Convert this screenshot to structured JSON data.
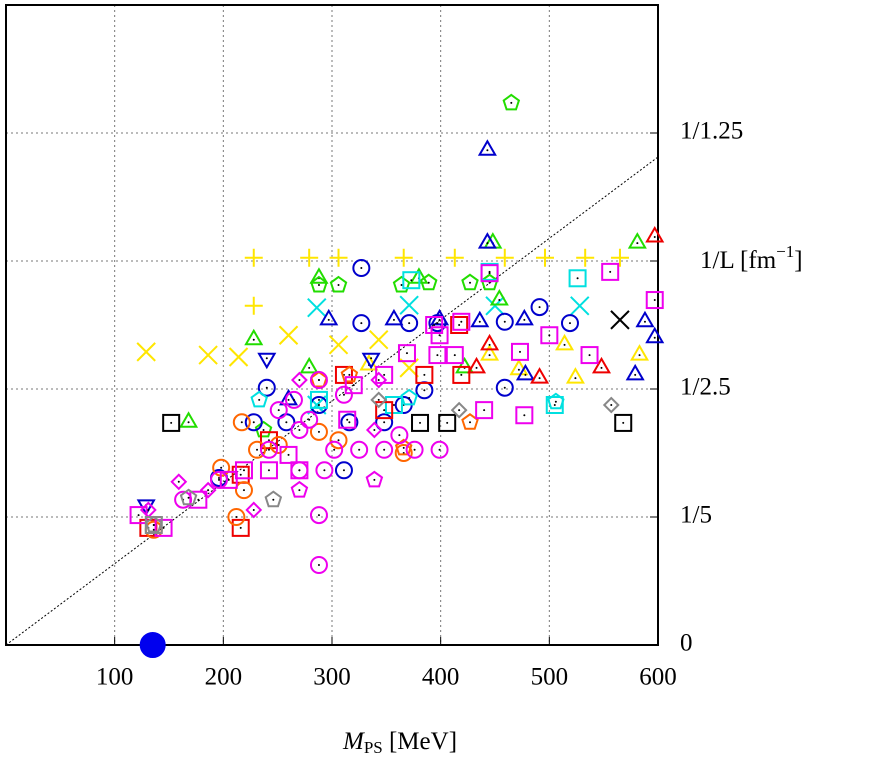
{
  "chart_data": {
    "type": "scatter",
    "x_label": {
      "main": "M",
      "sub": "PS",
      "unit": " [MeV]"
    },
    "y_label": {
      "main": "1/L [fm",
      "sup": "−1",
      "end": "]"
    },
    "xlim": [
      0,
      600
    ],
    "ylim": [
      0,
      1
    ],
    "xticks": [
      100,
      200,
      300,
      400,
      500,
      600
    ],
    "yticks": [
      0,
      {
        "value": 0.2,
        "label": "1/5"
      },
      {
        "value": 0.4,
        "label": "1/2.5"
      },
      {
        "value": 0.6,
        "label": null
      },
      {
        "value": 0.8,
        "label": "1/1.25"
      }
    ],
    "grid": true,
    "diagonal": {
      "x": [
        0,
        600
      ],
      "y": [
        0,
        0.7625
      ]
    },
    "series": [
      {
        "marker": "plus",
        "color": "#ffe600",
        "x": [
          228,
          306,
          366,
          413,
          459,
          496,
          533,
          565,
          228,
          279
        ],
        "y": [
          0.605,
          0.605,
          0.605,
          0.605,
          0.605,
          0.605,
          0.605,
          0.605,
          0.53,
          0.605
        ]
      },
      {
        "marker": "x",
        "color": "#ffe600",
        "x": [
          129,
          186,
          214,
          260,
          306,
          343,
          371
        ],
        "y": [
          0.458,
          0.453,
          0.45,
          0.484,
          0.469,
          0.477,
          0.433
        ]
      },
      {
        "marker": "x",
        "color": "#00e0e0",
        "x": [
          286,
          371,
          450,
          528,
          286
        ],
        "y": [
          0.527,
          0.531,
          0.53,
          0.53,
          0.375
        ]
      },
      {
        "marker": "x",
        "color": "#000000",
        "x": [
          565
        ],
        "y": [
          0.508
        ]
      },
      {
        "marker": "triangle",
        "color": "#ffe600",
        "x": [
          514,
          583,
          445,
          472,
          524,
          334
        ],
        "y": [
          0.469,
          0.453,
          0.453,
          0.43,
          0.417,
          0.4375
        ]
      },
      {
        "marker": "triangle",
        "color": "#22dd00",
        "x": [
          288,
          380,
          448,
          581,
          454,
          228,
          168,
          422,
          279
        ],
        "y": [
          0.573,
          0.573,
          0.628,
          0.628,
          0.539,
          0.477,
          0.348,
          0.433,
          0.433
        ]
      },
      {
        "marker": "pentagon",
        "color": "#22dd00",
        "x": [
          465,
          306,
          364,
          389,
          427,
          445,
          288,
          237
        ],
        "y": [
          0.847,
          0.5625,
          0.5625,
          0.566,
          0.566,
          0.566,
          0.5625,
          0.336
        ]
      },
      {
        "marker": "triangle",
        "color": "#0000cc",
        "x": [
          443,
          443,
          297,
          357,
          399,
          436,
          477,
          588,
          597,
          579,
          260,
          478
        ],
        "y": [
          0.773,
          0.628,
          0.508,
          0.508,
          0.508,
          0.505,
          0.508,
          0.505,
          0.48,
          0.422,
          0.383,
          0.422
        ]
      },
      {
        "marker": "triangle-down",
        "color": "#0000cc",
        "x": [
          240,
          336,
          129
        ],
        "y": [
          0.448,
          0.448,
          0.219
        ]
      },
      {
        "marker": "circle",
        "color": "#0000cc",
        "x": [
          327,
          327,
          371,
          397,
          459,
          491,
          519,
          240,
          228,
          258,
          316,
          348,
          366,
          459,
          311,
          288,
          385,
          196
        ],
        "y": [
          0.589,
          0.503,
          0.503,
          0.503,
          0.505,
          0.528,
          0.503,
          0.402,
          0.348,
          0.348,
          0.348,
          0.348,
          0.375,
          0.402,
          0.273,
          0.375,
          0.398,
          0.261
        ]
      },
      {
        "marker": "square",
        "color": "#00e0e0",
        "x": [
          526,
          373,
          445,
          505,
          357,
          288
        ],
        "y": [
          0.573,
          0.57,
          0.583,
          0.375,
          0.375,
          0.383
        ]
      },
      {
        "marker": "pentagon",
        "color": "#00e0e0",
        "x": [
          233,
          506,
          371
        ],
        "y": [
          0.383,
          0.38,
          0.386
        ]
      },
      {
        "marker": "triangle",
        "color": "#ee0000",
        "x": [
          597,
          548,
          491,
          433,
          445
        ],
        "y": [
          0.6375,
          0.433,
          0.417,
          0.433,
          0.469
        ]
      },
      {
        "marker": "square",
        "color": "#ee0000",
        "x": [
          419,
          385,
          311,
          216,
          216,
          131,
          242,
          348,
          417
        ],
        "y": [
          0.422,
          0.422,
          0.422,
          0.183,
          0.266,
          0.183,
          0.32,
          0.367,
          0.5
        ]
      },
      {
        "marker": "square",
        "color": "#000000",
        "x": [
          152,
          381,
          406,
          568
        ],
        "y": [
          0.347,
          0.347,
          0.347,
          0.347
        ]
      },
      {
        "marker": "circle",
        "color": "#ff6600",
        "x": [
          217,
          212,
          231,
          306,
          366,
          136,
          251,
          288,
          198,
          219
        ],
        "y": [
          0.348,
          0.2,
          0.305,
          0.32,
          0.3,
          0.18,
          0.3125,
          0.333,
          0.277,
          0.242
        ]
      },
      {
        "marker": "pentagon",
        "color": "#ff6600",
        "x": [
          427,
          366,
          288,
          316
        ],
        "y": [
          0.348,
          0.308,
          0.414,
          0.422
        ]
      },
      {
        "marker": "square",
        "color": "#ee00ee",
        "x": [
          597,
          556,
          500,
          473,
          537,
          397,
          413,
          369,
          445,
          419,
          394,
          348,
          320,
          122,
          145,
          177,
          219,
          242,
          270,
          260,
          205,
          440,
          314,
          399,
          477
        ],
        "y": [
          0.539,
          0.583,
          0.484,
          0.458,
          0.453,
          0.453,
          0.453,
          0.456,
          0.581,
          0.505,
          0.5,
          0.422,
          0.406,
          0.203,
          0.183,
          0.227,
          0.273,
          0.273,
          0.273,
          0.297,
          0.258,
          0.367,
          0.352,
          0.484,
          0.359
        ]
      },
      {
        "marker": "circle",
        "color": "#ee00ee",
        "x": [
          288,
          288,
          302,
          325,
          348,
          376,
          399,
          362,
          270,
          293,
          242,
          270,
          288,
          265,
          311,
          251,
          196,
          163,
          279
        ],
        "y": [
          0.125,
          0.203,
          0.305,
          0.305,
          0.305,
          0.305,
          0.305,
          0.328,
          0.273,
          0.273,
          0.305,
          0.336,
          0.414,
          0.383,
          0.391,
          0.367,
          0.258,
          0.227,
          0.352
        ]
      },
      {
        "marker": "pentagon",
        "color": "#ee00ee",
        "x": [
          339,
          270
        ],
        "y": [
          0.258,
          0.242
        ]
      },
      {
        "marker": "diamond",
        "color": "#ee00ee",
        "x": [
          131,
          159,
          186,
          228,
          270,
          339,
          343
        ],
        "y": [
          0.211,
          0.255,
          0.242,
          0.211,
          0.414,
          0.336,
          0.414
        ]
      },
      {
        "marker": "pentagon",
        "color": "#888888",
        "x": [
          246,
          168,
          136
        ],
        "y": [
          0.227,
          0.23,
          0.1875
        ]
      },
      {
        "marker": "diamond",
        "color": "#888888",
        "x": [
          417,
          557,
          343
        ],
        "y": [
          0.367,
          0.375,
          0.383
        ]
      },
      {
        "marker": "square",
        "color": "#888888",
        "x": [
          136
        ],
        "y": [
          0.1875
        ]
      },
      {
        "marker": "disc",
        "color": "#0000ee",
        "x": [
          135
        ],
        "y": [
          0
        ]
      }
    ]
  }
}
